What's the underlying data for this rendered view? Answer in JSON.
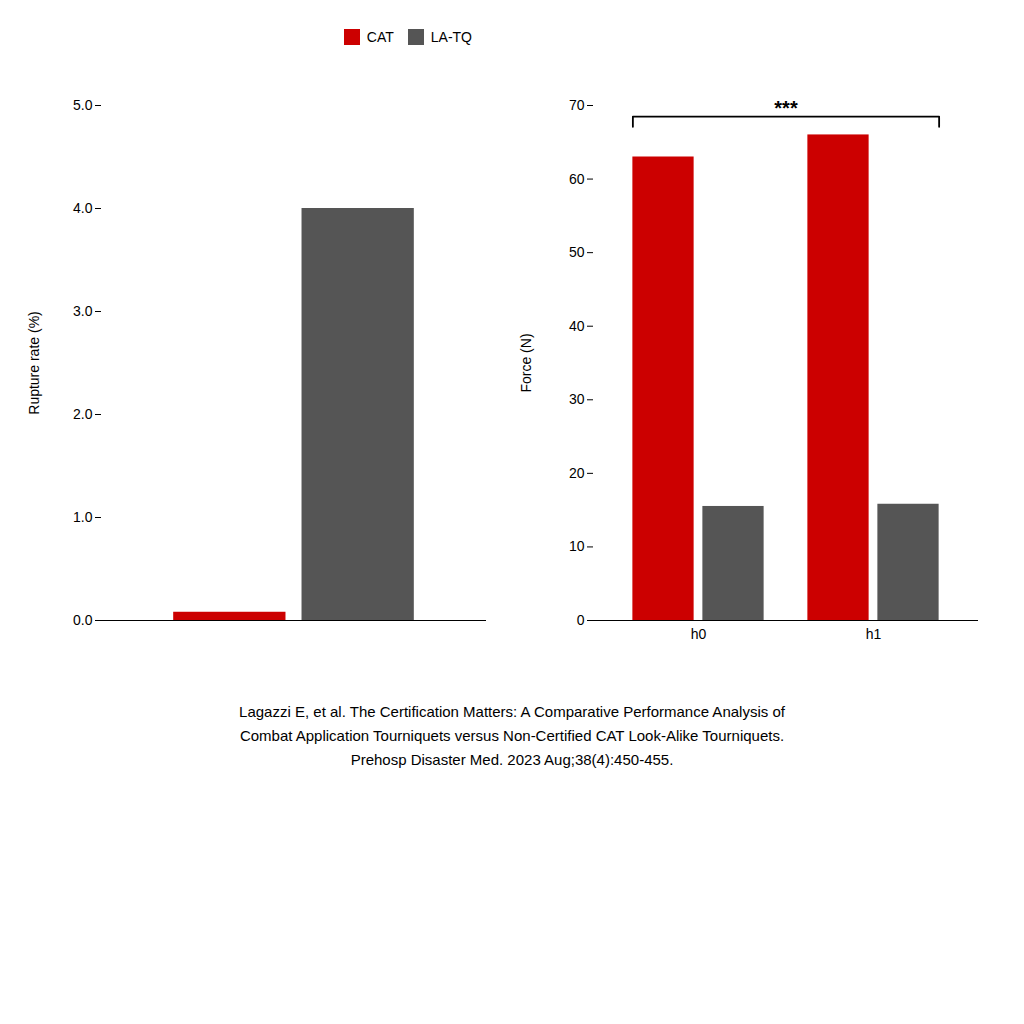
{
  "chart_data": [
    {
      "type": "bar",
      "categories": [
        null
      ],
      "series": [
        {
          "name": "CAT",
          "color": "#cc0000",
          "values": [
            0.08
          ]
        },
        {
          "name": "LA-TQ",
          "color": "#555555",
          "values": [
            4.0
          ]
        }
      ],
      "ylabel": "Rupture rate (%)",
      "ylim": [
        0,
        5
      ],
      "yticks": [
        0,
        1,
        2,
        3,
        4,
        5
      ],
      "tick_labels": "y",
      "legend": "upper right"
    },
    {
      "type": "bar",
      "categories": [
        "h0",
        "h1"
      ],
      "series": [
        {
          "name": "CAT",
          "color": "#cc0000",
          "values": [
            63,
            66
          ]
        },
        {
          "name": "LA-TQ",
          "color": "#555555",
          "values": [
            15.5,
            15.8
          ]
        }
      ],
      "ylabel": "Force (N)",
      "ylim": [
        0,
        70
      ],
      "yticks": [
        0,
        10,
        20,
        30,
        40,
        50,
        60,
        70
      ],
      "annotations": [
        {
          "text": "***",
          "y": 68.5
        }
      ]
    }
  ],
  "caption": "Lagazzi E, et al. The Certification Matters: A Comparative Performance Analysis of\nCombat Application Tourniquets versus Non-Certified CAT Look-Alike Tourniquets.\nPrehosp Disaster Med. 2023 Aug;38(4):450-455."
}
